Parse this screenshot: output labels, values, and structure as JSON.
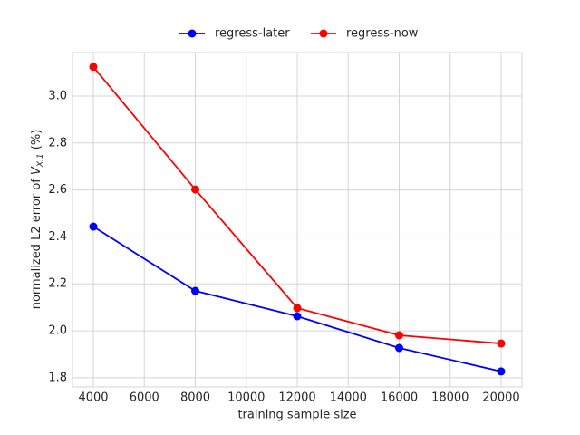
{
  "chart_data": {
    "type": "line",
    "xlabel": "training sample size",
    "ylabel": {
      "prefix": "normalized L2 error of ",
      "var": "V",
      "sub": "X,1",
      "suffix": " (%)"
    },
    "x": [
      4000,
      8000,
      12000,
      16000,
      20000
    ],
    "series": [
      {
        "name": "regress-later",
        "color": "#0000ff",
        "values": [
          2.444,
          2.17,
          2.062,
          1.927,
          1.827
        ]
      },
      {
        "name": "regress-now",
        "color": "#ff0000",
        "values": [
          3.124,
          2.602,
          2.097,
          1.981,
          1.946
        ]
      }
    ],
    "xlim": [
      3182,
      20818
    ],
    "ylim": [
      1.761,
      3.185
    ],
    "xticks": [
      4000,
      6000,
      8000,
      10000,
      12000,
      14000,
      16000,
      18000,
      20000
    ],
    "yticks": [
      1.8,
      {
        "value": 2.0,
        "label": "2.0"
      },
      2.2,
      2.4,
      2.6,
      2.8,
      {
        "value": 3.0,
        "label": "3.0"
      }
    ],
    "grid": true,
    "legend": "top"
  }
}
